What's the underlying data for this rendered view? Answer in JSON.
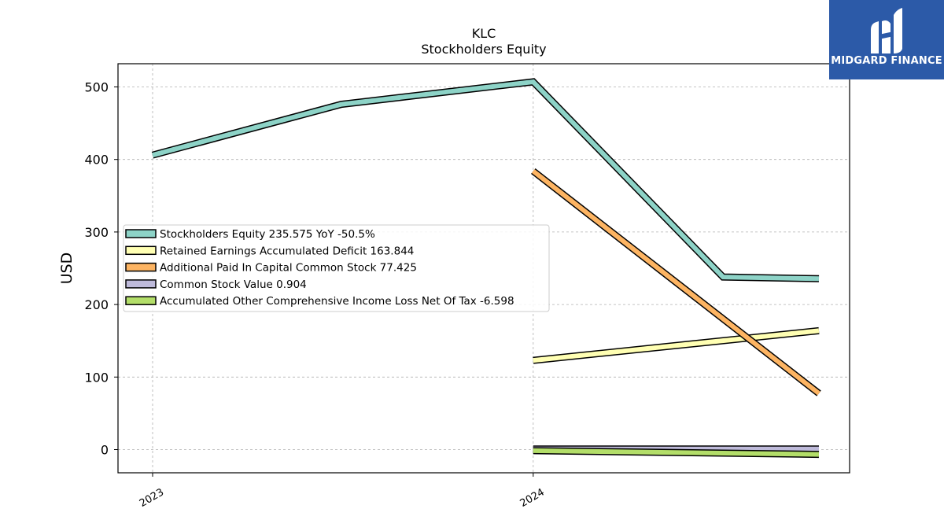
{
  "chart_data": {
    "type": "line",
    "title": "KLC",
    "subtitle": "Stockholders  Equity",
    "ylabel": "USD",
    "xlabel": "",
    "x_range": [
      "2023-01-01",
      "2024-10-01"
    ],
    "ylim": [
      -32,
      532
    ],
    "yticks": [
      0,
      100,
      200,
      300,
      400,
      500
    ],
    "xticks": [
      {
        "label": "2023",
        "date": "2023-01-01"
      },
      {
        "label": "2024",
        "date": "2024-01-01"
      }
    ],
    "grid": true,
    "legend_position": "center-left",
    "series": [
      {
        "name": "Stockholders Equity  235.575 YoY -50.5%",
        "color": "#8dd3c7",
        "points": [
          {
            "date": "2023-01-01",
            "value": 406
          },
          {
            "date": "2023-07-01",
            "value": 476
          },
          {
            "date": "2024-01-01",
            "value": 507
          },
          {
            "date": "2024-07-01",
            "value": 238
          },
          {
            "date": "2024-10-01",
            "value": 235.575
          }
        ]
      },
      {
        "name": "Retained Earnings Accumulated Deficit  163.844",
        "color": "#ffffb3",
        "points": [
          {
            "date": "2024-01-01",
            "value": 123
          },
          {
            "date": "2024-10-01",
            "value": 163.844
          }
        ]
      },
      {
        "name": "Additional Paid In Capital Common Stock  77.425",
        "color": "#fdb462",
        "points": [
          {
            "date": "2024-01-01",
            "value": 384
          },
          {
            "date": "2024-10-01",
            "value": 77.425
          }
        ]
      },
      {
        "name": "Common Stock Value  0.904",
        "color": "#bebada",
        "points": [
          {
            "date": "2024-01-01",
            "value": 0.9
          },
          {
            "date": "2024-10-01",
            "value": 0.904
          }
        ]
      },
      {
        "name": "Accumulated Other Comprehensive Income Loss Net Of Tax  -6.598",
        "color": "#b3de69",
        "points": [
          {
            "date": "2024-01-01",
            "value": -1.5
          },
          {
            "date": "2024-10-01",
            "value": -6.598
          }
        ]
      }
    ]
  },
  "logo": {
    "text": "MIDGARD FINANCE",
    "background": "#2c5aa8"
  }
}
